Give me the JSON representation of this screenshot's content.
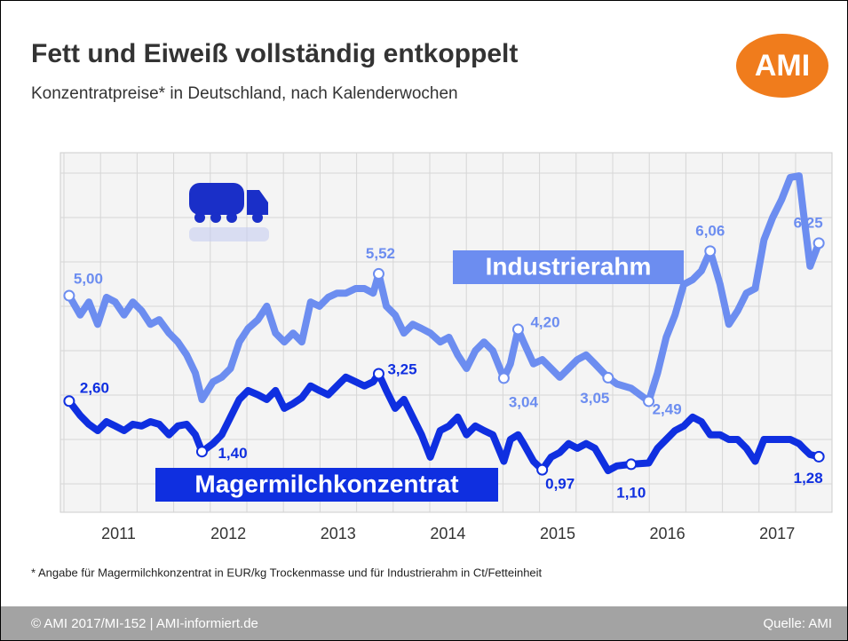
{
  "chart_data": {
    "type": "line",
    "title": "Fett und Eiweiß vollständig entkoppelt",
    "subtitle": "Konzentratpreise* in Deutschland, nach Kalenderwochen",
    "logo": "AMI",
    "footnote": "* Angabe für Magermilchkonzentrat in EUR/kg Trockenmasse und für Industrierahm in Ct/Fetteinheit",
    "footer": "© AMI 2017/MI-152 | AMI-informiert.de",
    "source": "Quelle: AMI",
    "xlim": [
      2010.97,
      2018.0
    ],
    "xticks": [
      {
        "value": 2011.5,
        "label": "2011"
      },
      {
        "value": 2012.5,
        "label": "2012"
      },
      {
        "value": 2013.5,
        "label": "2013"
      },
      {
        "value": 2014.5,
        "label": "2014"
      },
      {
        "value": 2015.5,
        "label": "2015"
      },
      {
        "value": 2016.5,
        "label": "2016"
      },
      {
        "value": 2017.5,
        "label": "2017"
      }
    ],
    "ylim": [
      -0.15,
      8.4
    ],
    "y2lim": [
      -0.04,
      8.5
    ],
    "grid": true,
    "x": [
      2011.05,
      2011.15,
      2011.23,
      2011.31,
      2011.39,
      2011.47,
      2011.55,
      2011.63,
      2011.71,
      2011.79,
      2011.87,
      2011.96,
      2012.04,
      2012.12,
      2012.2,
      2012.26,
      2012.36,
      2012.44,
      2012.52,
      2012.6,
      2012.68,
      2012.77,
      2012.85,
      2012.93,
      2013.01,
      2013.09,
      2013.17,
      2013.25,
      2013.33,
      2013.41,
      2013.49,
      2013.57,
      2013.66,
      2013.74,
      2013.82,
      2013.87,
      2013.94,
      2014.02,
      2014.1,
      2014.18,
      2014.26,
      2014.34,
      2014.43,
      2014.51,
      2014.59,
      2014.67,
      2014.75,
      2014.83,
      2014.91,
      2015.01,
      2015.07,
      2015.14,
      2015.19,
      2015.28,
      2015.36,
      2015.44,
      2015.52,
      2015.6,
      2015.68,
      2015.76,
      2015.84,
      2015.96,
      2016.04,
      2016.17,
      2016.33,
      2016.41,
      2016.49,
      2016.57,
      2016.65,
      2016.73,
      2016.81,
      2016.89,
      2016.98,
      2017.06,
      2017.14,
      2017.22,
      2017.3,
      2017.38,
      2017.46,
      2017.54,
      2017.62,
      2017.7,
      2017.74,
      2017.8,
      2017.88
    ],
    "series": [
      {
        "name": "Industrierahm",
        "color": "#6c8df0",
        "values": [
          5.0,
          4.54,
          4.85,
          4.32,
          4.96,
          4.85,
          4.54,
          4.85,
          4.64,
          4.32,
          4.43,
          4.11,
          3.9,
          3.59,
          3.16,
          2.53,
          2.95,
          3.06,
          3.27,
          3.9,
          4.22,
          4.43,
          4.75,
          4.11,
          3.9,
          4.11,
          3.9,
          4.85,
          4.75,
          4.96,
          5.06,
          5.06,
          5.17,
          5.17,
          5.06,
          5.52,
          4.75,
          4.54,
          4.11,
          4.32,
          4.22,
          4.11,
          3.9,
          4.01,
          3.59,
          3.27,
          3.69,
          3.9,
          3.69,
          3.04,
          3.38,
          4.2,
          3.9,
          3.38,
          3.48,
          3.27,
          3.06,
          3.27,
          3.48,
          3.59,
          3.38,
          3.05,
          2.9,
          2.8,
          2.49,
          3.16,
          4.01,
          4.54,
          5.27,
          5.38,
          5.59,
          6.06,
          5.27,
          4.32,
          4.64,
          5.06,
          5.17,
          6.33,
          6.86,
          7.28,
          7.81,
          7.85,
          6.96,
          5.7,
          6.25
        ],
        "value_labels": [
          "5,00",
          null,
          null,
          null,
          null,
          null,
          null,
          null,
          null,
          null,
          null,
          null,
          null,
          null,
          null,
          null,
          null,
          null,
          null,
          null,
          null,
          null,
          null,
          null,
          null,
          null,
          null,
          null,
          null,
          null,
          null,
          null,
          null,
          null,
          null,
          "5,52",
          null,
          null,
          null,
          null,
          null,
          null,
          null,
          null,
          null,
          null,
          null,
          null,
          null,
          "3,04",
          null,
          "4,20",
          null,
          null,
          null,
          null,
          null,
          null,
          null,
          null,
          null,
          "3,05",
          null,
          null,
          "2,49",
          null,
          null,
          null,
          null,
          null,
          null,
          "6,06",
          null,
          null,
          null,
          null,
          null,
          null,
          null,
          null,
          null,
          null,
          null,
          null,
          "6,25"
        ]
      },
      {
        "name": "Magermilchkonzentrat",
        "color": "#0f2fe0",
        "axis": "y2",
        "values": [
          2.6,
          2.26,
          2.05,
          1.9,
          2.11,
          2.01,
          1.9,
          2.05,
          2.01,
          2.11,
          2.05,
          1.8,
          2.01,
          2.05,
          1.8,
          1.4,
          1.59,
          1.8,
          2.22,
          2.64,
          2.85,
          2.75,
          2.64,
          2.85,
          2.43,
          2.54,
          2.68,
          2.96,
          2.85,
          2.75,
          2.96,
          3.17,
          3.06,
          2.96,
          3.06,
          3.25,
          2.85,
          2.43,
          2.64,
          2.22,
          1.8,
          1.27,
          1.9,
          2.01,
          2.22,
          1.8,
          2.01,
          1.9,
          1.8,
          1.17,
          1.69,
          1.8,
          1.59,
          1.17,
          0.97,
          1.27,
          1.38,
          1.59,
          1.48,
          1.59,
          1.48,
          0.95,
          1.06,
          1.1,
          1.13,
          1.48,
          1.69,
          1.9,
          2.01,
          2.22,
          2.11,
          1.8,
          1.8,
          1.69,
          1.69,
          1.48,
          1.17,
          1.69,
          1.69,
          1.69,
          1.69,
          1.59,
          1.48,
          1.33,
          1.28
        ],
        "value_labels": [
          "2,60",
          null,
          null,
          null,
          null,
          null,
          null,
          null,
          null,
          null,
          null,
          null,
          null,
          null,
          null,
          "1,40",
          null,
          null,
          null,
          null,
          null,
          null,
          null,
          null,
          null,
          null,
          null,
          null,
          null,
          null,
          null,
          null,
          null,
          null,
          null,
          "3,25",
          null,
          null,
          null,
          null,
          null,
          null,
          null,
          null,
          null,
          null,
          null,
          null,
          null,
          null,
          null,
          null,
          null,
          null,
          "0,97",
          null,
          null,
          null,
          null,
          null,
          null,
          null,
          null,
          "1,10",
          null,
          null,
          null,
          null,
          null,
          null,
          null,
          null,
          null,
          null,
          null,
          null,
          null,
          null,
          null,
          null,
          null,
          null,
          null,
          null,
          "1,28"
        ]
      }
    ]
  }
}
